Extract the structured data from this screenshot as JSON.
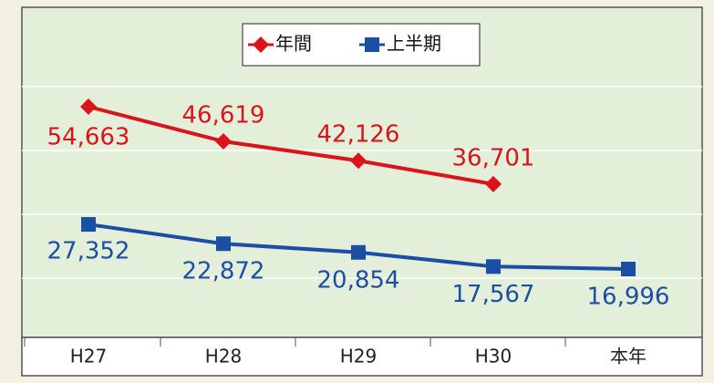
{
  "chart_data": {
    "type": "line",
    "categories": [
      "H27",
      "H28",
      "H29",
      "H30",
      "本年"
    ],
    "series": [
      {
        "name": "年間",
        "color": "#d9151b",
        "values": [
          54663,
          46619,
          42126,
          36701,
          null
        ],
        "value_labels": [
          "54,663",
          "46,619",
          "42,126",
          "36,701",
          null
        ]
      },
      {
        "name": "上半期",
        "color": "#1a4fa5",
        "values": [
          27352,
          22872,
          20854,
          17567,
          16996
        ],
        "value_labels": [
          "27,352",
          "22,872",
          "20,854",
          "17,567",
          "16,996"
        ]
      }
    ],
    "legend": "top"
  }
}
